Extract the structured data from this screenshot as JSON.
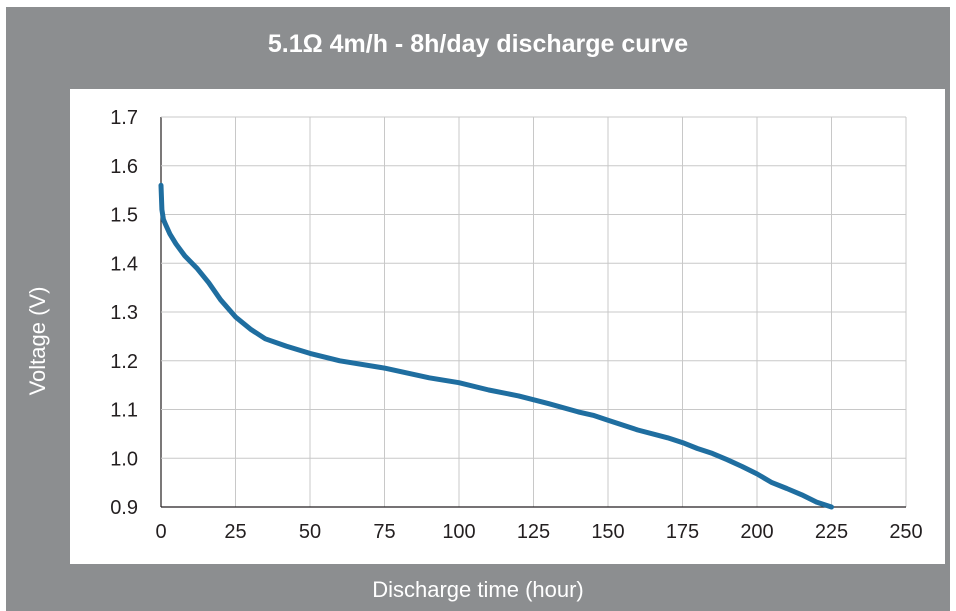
{
  "chart_data": {
    "type": "line",
    "title": "5.1Ω 4m/h - 8h/day discharge curve",
    "xlabel": "Discharge time (hour)",
    "ylabel": "Voltage (V)",
    "xlim": [
      0,
      250
    ],
    "ylim": [
      0.9,
      1.7
    ],
    "xticks": [
      0,
      25,
      50,
      75,
      100,
      125,
      150,
      175,
      200,
      225,
      250
    ],
    "yticks": [
      0.9,
      1.0,
      1.1,
      1.2,
      1.3,
      1.4,
      1.5,
      1.6,
      1.7
    ],
    "ytick_labels": [
      "0.9",
      "1.0",
      "1.1",
      "1.2",
      "1.3",
      "1.4",
      "1.5",
      "1.6",
      "1.7"
    ],
    "grid": true,
    "legend": "none",
    "series": [
      {
        "color": "#1f6ea0",
        "x": [
          0,
          0.3,
          0.8,
          1.5,
          3,
          5,
          8,
          12,
          16,
          20,
          25,
          30,
          35,
          42,
          50,
          60,
          75,
          90,
          100,
          110,
          120,
          130,
          140,
          145,
          150,
          160,
          170,
          175,
          180,
          185,
          190,
          195,
          200,
          205,
          210,
          215,
          220,
          225
        ],
        "y": [
          1.56,
          1.51,
          1.49,
          1.48,
          1.46,
          1.44,
          1.415,
          1.39,
          1.36,
          1.325,
          1.29,
          1.265,
          1.245,
          1.23,
          1.215,
          1.2,
          1.185,
          1.165,
          1.155,
          1.14,
          1.128,
          1.112,
          1.095,
          1.088,
          1.078,
          1.058,
          1.042,
          1.032,
          1.02,
          1.01,
          0.997,
          0.983,
          0.968,
          0.95,
          0.938,
          0.925,
          0.91,
          0.9
        ]
      }
    ]
  }
}
